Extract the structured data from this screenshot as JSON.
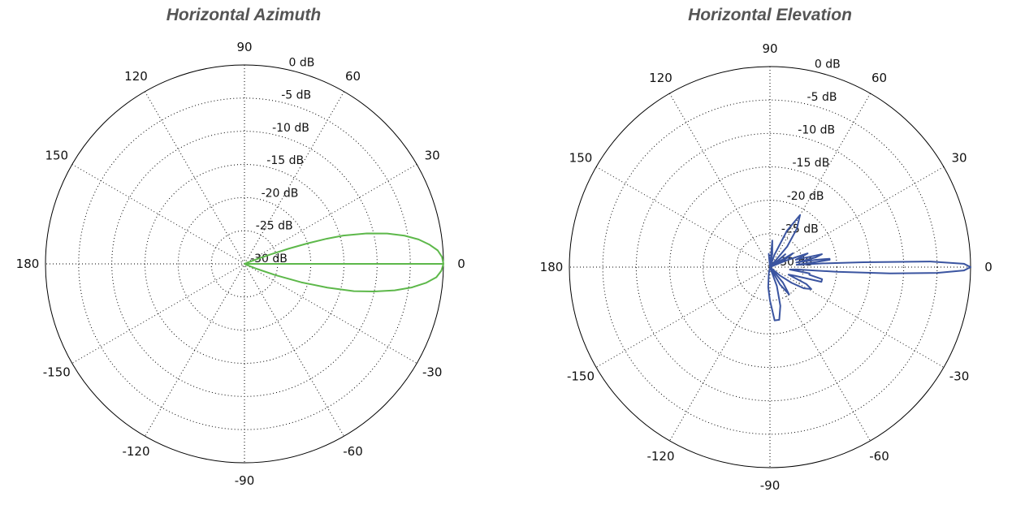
{
  "chart_data": [
    {
      "type": "polar",
      "title": "Horizontal Azimuth",
      "angle_ticks": [
        "0",
        "30",
        "60",
        "90",
        "120",
        "150",
        "180",
        "-150",
        "-120",
        "-90",
        "-60",
        "-30"
      ],
      "angle_tick_values": [
        0,
        30,
        60,
        90,
        120,
        150,
        180,
        -150,
        -120,
        -90,
        -60,
        -30
      ],
      "radial_ticks": [
        "0 dB",
        "-5 dB",
        "-10 dB",
        "-15 dB",
        "-20 dB",
        "-25 dB",
        "-30 dB"
      ],
      "radial_tick_values": [
        0,
        -5,
        -10,
        -15,
        -20,
        -25,
        -30
      ],
      "rlim": [
        -30,
        0
      ],
      "grid": true,
      "color": "#5db84a",
      "series": [
        {
          "angle_deg": [
            0,
            2,
            4,
            6,
            8,
            10,
            12,
            14,
            16,
            17,
            18,
            19,
            20,
            21,
            22,
            23,
            24,
            25,
            0,
            -2,
            -4,
            -6,
            -8,
            -10,
            -12,
            -14,
            -16,
            -18,
            -20,
            -22,
            -24,
            -25
          ],
          "gain_db": [
            0,
            -0.2,
            -0.8,
            -2,
            -3.5,
            -5.5,
            -8,
            -11,
            -14.5,
            -17,
            -20,
            -23,
            -26,
            -28,
            -29.5,
            -30,
            -30,
            -30,
            0,
            -0.3,
            -1,
            -2.5,
            -4.5,
            -7,
            -10,
            -13,
            -17,
            -21,
            -25,
            -28,
            -29.5,
            -30
          ]
        }
      ]
    },
    {
      "type": "polar",
      "title": "Horizontal Elevation",
      "angle_ticks": [
        "0",
        "30",
        "60",
        "90",
        "120",
        "150",
        "180",
        "-150",
        "-120",
        "-90",
        "-60",
        "-30"
      ],
      "angle_tick_values": [
        0,
        30,
        60,
        90,
        120,
        150,
        180,
        -150,
        -120,
        -90,
        -60,
        -30
      ],
      "radial_ticks": [
        "0 dB",
        "-5 dB",
        "-10 dB",
        "-15 dB",
        "-20 dB",
        "-25 dB",
        "-30 dB"
      ],
      "radial_tick_values": [
        0,
        -5,
        -10,
        -15,
        -20,
        -25,
        -30
      ],
      "rlim": [
        -30,
        0
      ],
      "grid": true,
      "color": "#3a54a0",
      "series": [
        {
          "angle_deg": [
            -5,
            -4,
            -3,
            -2,
            -1,
            0,
            1,
            2,
            3,
            4,
            5,
            6,
            7,
            8,
            9,
            10,
            12,
            14,
            16,
            18,
            20,
            22,
            25,
            28,
            31,
            34,
            37,
            40,
            45,
            50,
            55,
            60,
            65,
            70,
            75,
            80,
            85,
            90,
            95,
            100,
            110,
            120,
            130,
            140,
            150,
            160,
            170,
            180,
            -170,
            -160,
            -150,
            -140,
            -130,
            -120,
            -110,
            -100,
            -95,
            -90,
            -85,
            -80,
            -75,
            -70,
            -65,
            -60,
            -55,
            -50,
            -45,
            -40,
            -36,
            -32,
            -28,
            -25,
            -22,
            -19,
            -16,
            -13,
            -11,
            -9,
            -7,
            -5
          ],
          "gain_db": [
            -26,
            -20,
            -12,
            -5,
            -1,
            0,
            -1,
            -6,
            -16,
            -22,
            -26,
            -24,
            -21,
            -21,
            -23,
            -26,
            -23,
            -22,
            -26,
            -25,
            -24,
            -27,
            -30,
            -27,
            -26,
            -30,
            -29,
            -27,
            -30,
            -26,
            -23,
            -21,
            -24,
            -28,
            -30,
            -28,
            -26,
            -30,
            -28,
            -30,
            -30,
            -30,
            -30,
            -30,
            -30,
            -30,
            -30,
            -30,
            -30,
            -30,
            -30,
            -30,
            -30,
            -30,
            -30,
            -29,
            -27,
            -25,
            -22,
            -22,
            -24,
            -27,
            -30,
            -27,
            -25,
            -27,
            -30,
            -28,
            -26,
            -24,
            -23,
            -24,
            -27,
            -26,
            -22,
            -22,
            -24,
            -24,
            -27,
            -26
          ]
        }
      ]
    }
  ]
}
